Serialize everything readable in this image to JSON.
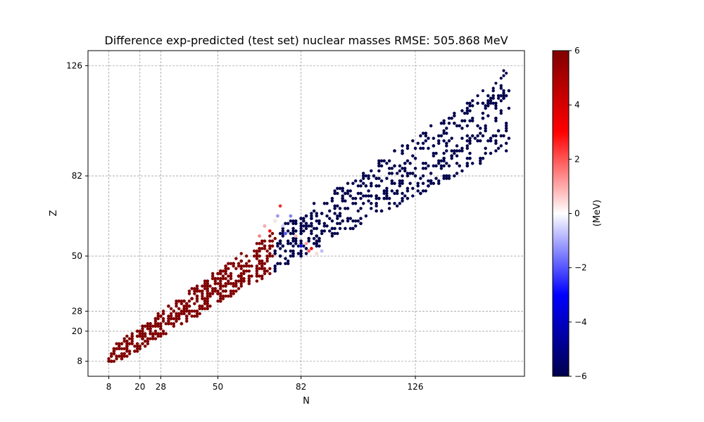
{
  "chart_data": {
    "type": "scatter",
    "title": "Difference exp-predicted (test set) nuclear masses  RMSE: 505.868 MeV",
    "xlabel": "N",
    "ylabel": "Z",
    "xlim": [
      0,
      168
    ],
    "ylim": [
      2,
      132
    ],
    "xticks": [
      8,
      20,
      28,
      50,
      82,
      126
    ],
    "yticks": [
      8,
      20,
      28,
      50,
      82,
      126
    ],
    "grid": true,
    "colorbar": {
      "label": "(MeV)",
      "min": -6,
      "max": 6,
      "ticks": [
        6,
        4,
        2,
        0,
        -2,
        -4,
        -6
      ],
      "tick_labels": [
        "6",
        "4",
        "2",
        "0",
        "−2",
        "−4",
        "−6"
      ],
      "colormap": "seismic",
      "colors": [
        "#00004c",
        "#0000ff",
        "#ffffff",
        "#ff0000",
        "#800000"
      ]
    },
    "points_summary": "Points along the valley of stability; difference saturated near +6 MeV for N below about 72 and near -6 MeV for N above about 72, with a few near-zero points at the boundary.",
    "regions": [
      {
        "n_min": 8,
        "n_max": 72,
        "value": 6,
        "count": 520
      },
      {
        "n_min": 72,
        "n_max": 162,
        "value": -6,
        "count": 580
      }
    ],
    "transition_points": [
      {
        "n": 66,
        "z": 58,
        "value": 1.5
      },
      {
        "n": 68,
        "z": 62,
        "value": 1.0
      },
      {
        "n": 70,
        "z": 60,
        "value": 3.0
      },
      {
        "n": 72,
        "z": 64,
        "value": 0.3
      },
      {
        "n": 73,
        "z": 66,
        "value": -1.2
      },
      {
        "n": 74,
        "z": 70,
        "value": 2.5
      },
      {
        "n": 75,
        "z": 62,
        "value": -0.5
      },
      {
        "n": 76,
        "z": 59,
        "value": -2.0
      },
      {
        "n": 78,
        "z": 66,
        "value": -1.5
      },
      {
        "n": 80,
        "z": 58,
        "value": 0.8
      },
      {
        "n": 82,
        "z": 54,
        "value": -3.0
      },
      {
        "n": 84,
        "z": 55,
        "value": 1.2
      },
      {
        "n": 85,
        "z": 52,
        "value": 2.0
      },
      {
        "n": 86,
        "z": 53,
        "value": 3.5
      },
      {
        "n": 88,
        "z": 51,
        "value": 0.4
      },
      {
        "n": 90,
        "z": 52,
        "value": -0.8
      }
    ]
  }
}
